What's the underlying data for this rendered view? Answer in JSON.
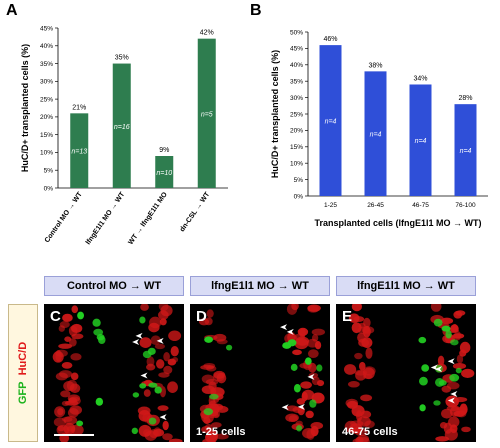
{
  "panelA": {
    "letter": "A",
    "ylabel": "HuC/D+ transplanted cells (%)",
    "yticks": [
      "0%",
      "5%",
      "10%",
      "15%",
      "20%",
      "25%",
      "30%",
      "35%",
      "40%",
      "45%"
    ],
    "bars": [
      {
        "category": "Control MO → WT",
        "value": 21,
        "pct": "21%",
        "n": "n=13"
      },
      {
        "category": "lfngE1l1 MO → WT",
        "value": 35,
        "pct": "35%",
        "n": "n=16"
      },
      {
        "category": "WT → lfngE1l1 MO",
        "value": 9,
        "pct": "9%",
        "n": "n=10"
      },
      {
        "category": "dn-CSL → WT",
        "value": 42,
        "pct": "42%",
        "n": "n=5"
      }
    ],
    "color": "#2e7d4f"
  },
  "panelB": {
    "letter": "B",
    "ylabel": "HuC/D+ transplanted cells (%)",
    "xlabel": "Transplanted cells (lfngE1l1 MO → WT)",
    "yticks": [
      "0%",
      "5%",
      "10%",
      "15%",
      "20%",
      "25%",
      "30%",
      "35%",
      "40%",
      "45%",
      "50%"
    ],
    "bars": [
      {
        "category": "1-25",
        "value": 46,
        "pct": "46%",
        "n": "n=4"
      },
      {
        "category": "26-45",
        "value": 38,
        "pct": "38%",
        "n": "n=4"
      },
      {
        "category": "46-75",
        "value": 34,
        "pct": "34%",
        "n": "n=4"
      },
      {
        "category": "76-100",
        "value": 28,
        "pct": "28%",
        "n": "n=4"
      }
    ],
    "color": "#2f4fd8"
  },
  "chart_data": [
    {
      "type": "bar",
      "categories": [
        "Control MO → WT",
        "lfngE1l1 MO → WT",
        "WT → lfngE1l1 MO",
        "dn-CSL → WT"
      ],
      "values": [
        21,
        35,
        9,
        42
      ],
      "ylabel": "HuC/D+ transplanted cells (%)",
      "ylim": [
        0,
        45
      ]
    },
    {
      "type": "bar",
      "categories": [
        "1-25",
        "26-45",
        "46-75",
        "76-100"
      ],
      "values": [
        46,
        38,
        34,
        28
      ],
      "ylabel": "HuC/D+ transplanted cells (%)",
      "xlabel": "Transplanted cells (lfngE1l1 MO → WT)",
      "ylim": [
        0,
        50
      ]
    }
  ],
  "micro": {
    "side_gfp": "GFP",
    "side_hucd": "HuC/D",
    "panels": [
      {
        "letter": "C",
        "header": "Control MO → WT",
        "caption": ""
      },
      {
        "letter": "D",
        "header": "lfngE1l1 MO → WT",
        "caption": "1-25 cells"
      },
      {
        "letter": "E",
        "header": "lfngE1l1 MO → WT",
        "caption": "46-75 cells"
      }
    ]
  }
}
